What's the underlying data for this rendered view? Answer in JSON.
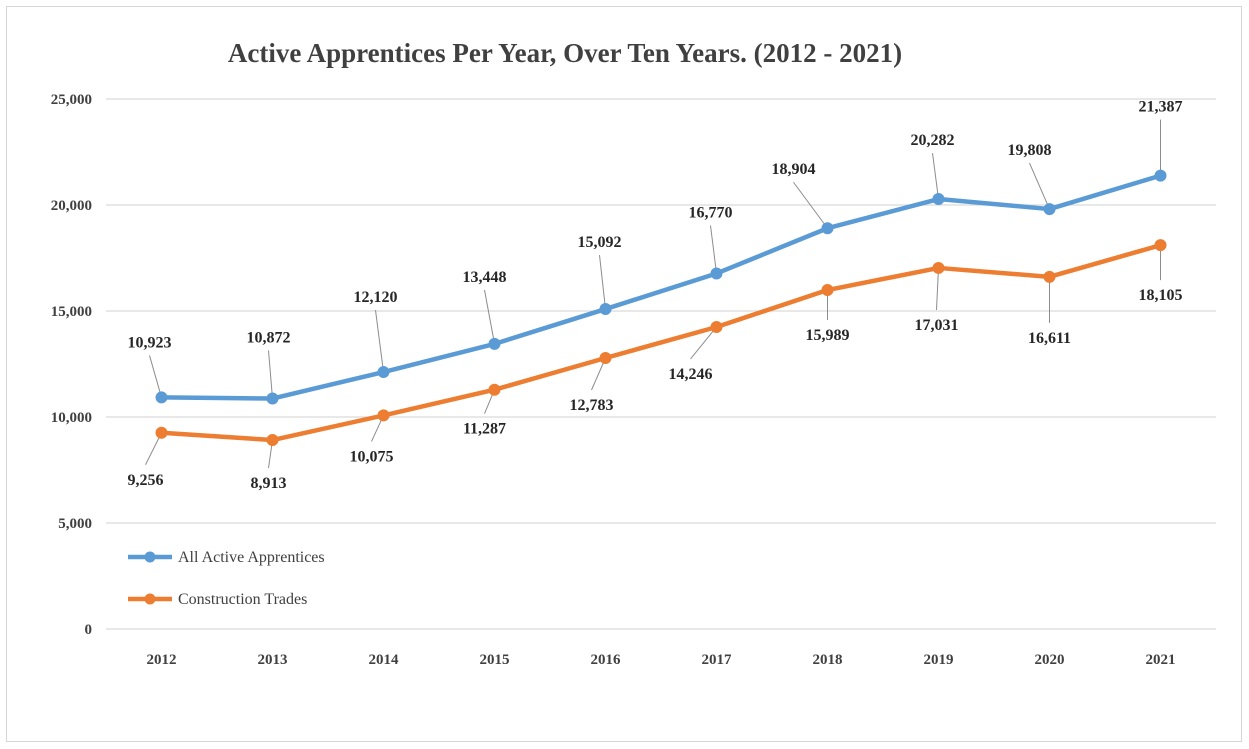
{
  "chart_data": {
    "type": "line",
    "title": "Active Apprentices Per Year, Over Ten Years. (2012 - 2021)",
    "categories": [
      "2012",
      "2013",
      "2014",
      "2015",
      "2016",
      "2017",
      "2018",
      "2019",
      "2020",
      "2021"
    ],
    "y_ticks": [
      "0",
      "5,000",
      "10,000",
      "15,000",
      "20,000",
      "25,000"
    ],
    "ylim": [
      0,
      25000
    ],
    "grid": true,
    "legend_position": "bottom-left",
    "series": [
      {
        "name": "All Active Apprentices",
        "color": "#5B9BD5",
        "values": [
          10923,
          10872,
          12120,
          13448,
          15092,
          16770,
          18904,
          20282,
          19808,
          21387
        ],
        "labels": [
          "10,923",
          "10,872",
          "12,120",
          "13,448",
          "15,092",
          "16,770",
          "18,904",
          "20,282",
          "19,808",
          "21,387"
        ]
      },
      {
        "name": "Construction Trades",
        "color": "#ED7D31",
        "values": [
          9256,
          8913,
          10075,
          11287,
          12783,
          14246,
          15989,
          17031,
          16611,
          18105
        ],
        "labels": [
          "9,256",
          "8,913",
          "10,075",
          "11,287",
          "12,783",
          "14,246",
          "15,989",
          "17,031",
          "16,611",
          "18,105"
        ]
      }
    ]
  }
}
